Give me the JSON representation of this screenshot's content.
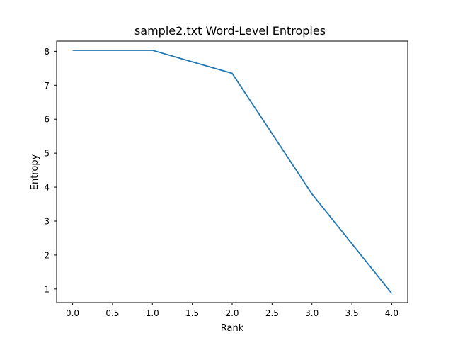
{
  "chart_data": {
    "type": "line",
    "title": "sample2.txt Word-Level Entropies",
    "xlabel": "Rank",
    "ylabel": "Entropy",
    "x": [
      0,
      1,
      2,
      3,
      4
    ],
    "series": [
      {
        "values": [
          8.03,
          8.03,
          7.35,
          3.8,
          0.87
        ]
      }
    ],
    "xlim": [
      -0.2,
      4.2
    ],
    "ylim": [
      0.6,
      8.3
    ],
    "xticks": [
      "0.0",
      "0.5",
      "1.0",
      "1.5",
      "2.0",
      "2.5",
      "3.0",
      "3.5",
      "4.0"
    ],
    "yticks": [
      "1",
      "2",
      "3",
      "4",
      "5",
      "6",
      "7",
      "8"
    ],
    "grid": false,
    "line_color": "#1f77b4"
  }
}
